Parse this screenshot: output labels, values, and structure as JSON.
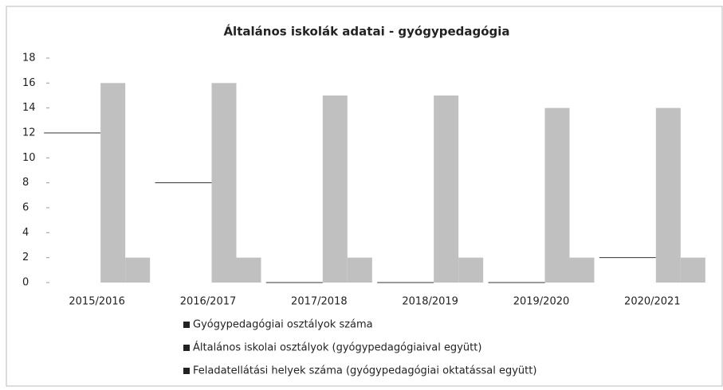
{
  "chart_data": {
    "type": "bar",
    "title": "Általános iskolák adatai - gyógypedagógia",
    "categories": [
      "2015/2016",
      "2016/2017",
      "2017/2018",
      "2018/2019",
      "2019/2020",
      "2020/2021"
    ],
    "series": [
      {
        "name": "Gyógypedagógiai osztályok száma",
        "color": "#ffffff",
        "values": [
          12,
          8,
          0,
          0,
          0,
          2
        ]
      },
      {
        "name": "Általános iskolai osztályok (gyógypedagógiaival együtt)",
        "color": "#c0c0c0",
        "values": [
          16,
          16,
          15,
          15,
          14,
          14
        ]
      },
      {
        "name": "Feladatellátási helyek száma (gyógypedagógiai oktatással együtt)",
        "color": "#c0c0c0",
        "values": [
          2,
          2,
          2,
          2,
          2,
          2
        ]
      }
    ],
    "ylim": [
      0,
      18
    ],
    "yticks": [
      0,
      2,
      4,
      6,
      8,
      10,
      12,
      14,
      16,
      18
    ],
    "grid": false,
    "legend": "bottom"
  }
}
